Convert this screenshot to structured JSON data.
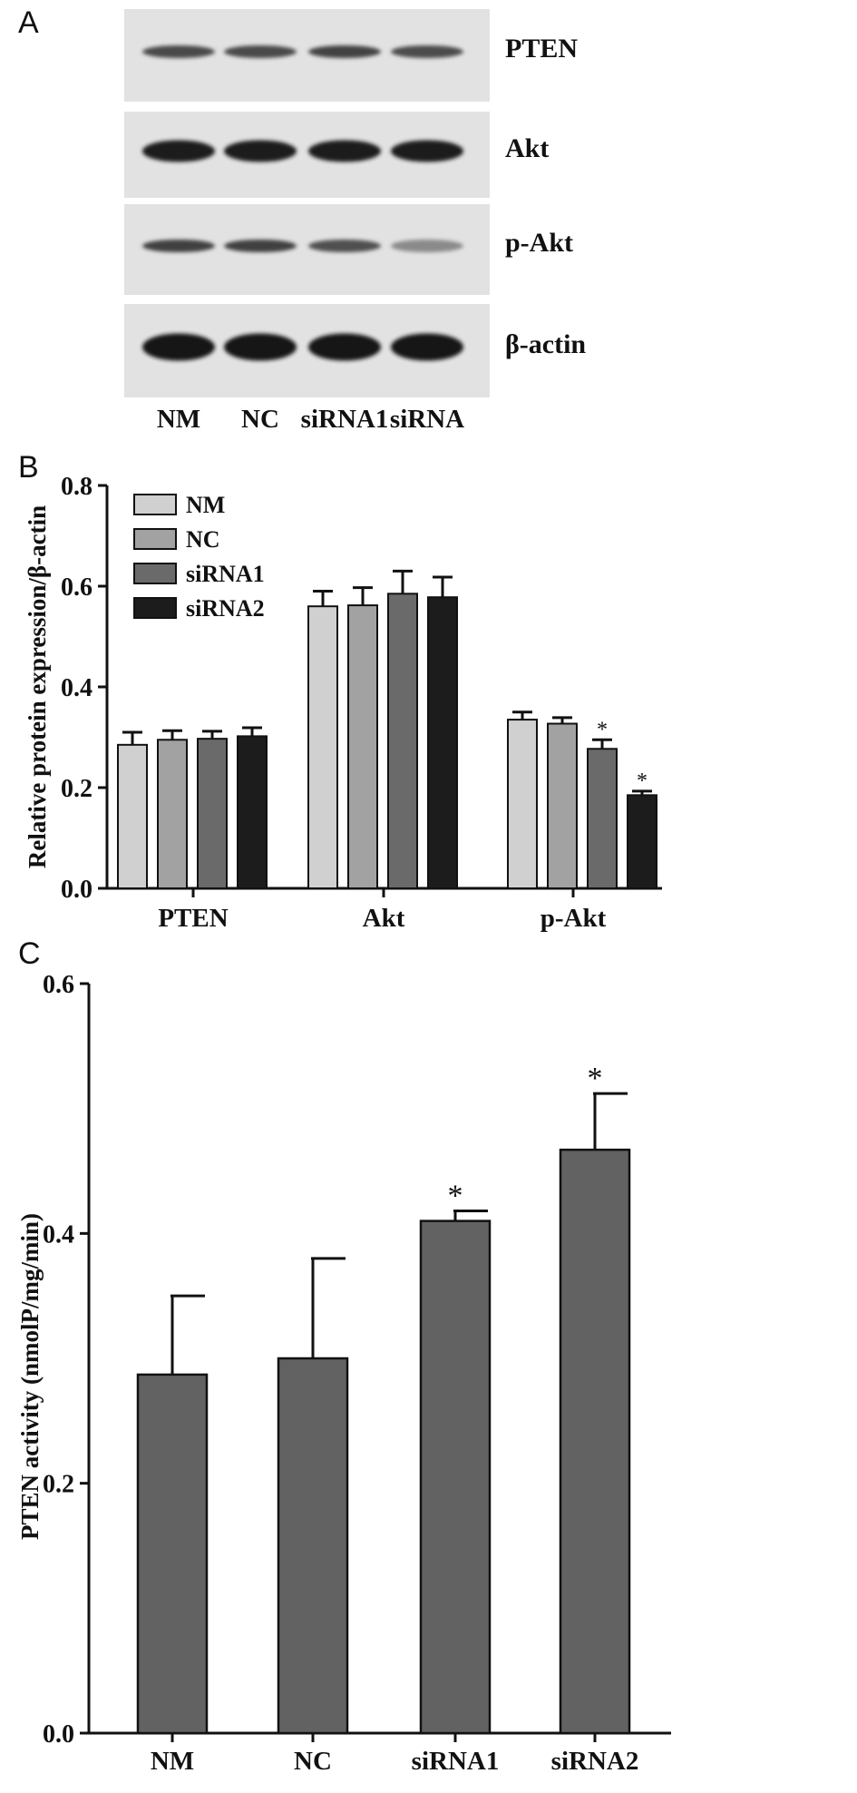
{
  "panel_a": {
    "letter": "A",
    "bands": [
      {
        "label": "PTEN",
        "intensity": [
          0.75,
          0.75,
          0.78,
          0.74
        ]
      },
      {
        "label": "Akt",
        "intensity": [
          0.95,
          0.95,
          0.95,
          0.95
        ]
      },
      {
        "label": "p-Akt",
        "intensity": [
          0.8,
          0.8,
          0.72,
          0.45
        ]
      },
      {
        "label": "β-actin",
        "intensity": [
          1.0,
          1.0,
          1.0,
          1.0
        ]
      }
    ],
    "lanes": [
      "NM",
      "NC",
      "siRNA1",
      "siRNA"
    ]
  },
  "panel_b": {
    "letter": "B"
  },
  "panel_c": {
    "letter": "C"
  },
  "chart_data": [
    {
      "type": "bar",
      "ylabel": "Relative protein expression/β-actin",
      "ylim": [
        0,
        0.8
      ],
      "yticks": [
        "0.0",
        "0.2",
        "0.4",
        "0.6",
        "0.8"
      ],
      "categories": [
        "PTEN",
        "Akt",
        "p-Akt"
      ],
      "legend_position": "top-left",
      "series": [
        {
          "name": "NM",
          "color": "#d0d0d0",
          "values": [
            0.285,
            0.56,
            0.335
          ],
          "errors": [
            0.025,
            0.03,
            0.015
          ],
          "stars": [
            "",
            "",
            ""
          ]
        },
        {
          "name": "NC",
          "color": "#a2a2a2",
          "values": [
            0.295,
            0.562,
            0.327
          ],
          "errors": [
            0.018,
            0.035,
            0.012
          ],
          "stars": [
            "",
            "",
            ""
          ]
        },
        {
          "name": "siRNA1",
          "color": "#6a6a6a",
          "values": [
            0.297,
            0.585,
            0.277
          ],
          "errors": [
            0.015,
            0.045,
            0.018
          ],
          "stars": [
            "",
            "",
            "*"
          ]
        },
        {
          "name": "siRNA2",
          "color": "#1c1c1c",
          "values": [
            0.302,
            0.578,
            0.185
          ],
          "errors": [
            0.017,
            0.04,
            0.008
          ],
          "stars": [
            "",
            "",
            "*"
          ]
        }
      ]
    },
    {
      "type": "bar",
      "ylabel": "PTEN activity (nmolP/mg/min)",
      "ylim": [
        0,
        0.6
      ],
      "yticks": [
        "0.0",
        "0.2",
        "0.4",
        "0.6"
      ],
      "categories": [
        "NM",
        "NC",
        "siRNA1",
        "siRNA2"
      ],
      "color": "#626262",
      "values": [
        0.287,
        0.3,
        0.41,
        0.467
      ],
      "errors": [
        0.063,
        0.08,
        0.008,
        0.045
      ],
      "stars": [
        "",
        "",
        "*",
        "*"
      ]
    }
  ]
}
